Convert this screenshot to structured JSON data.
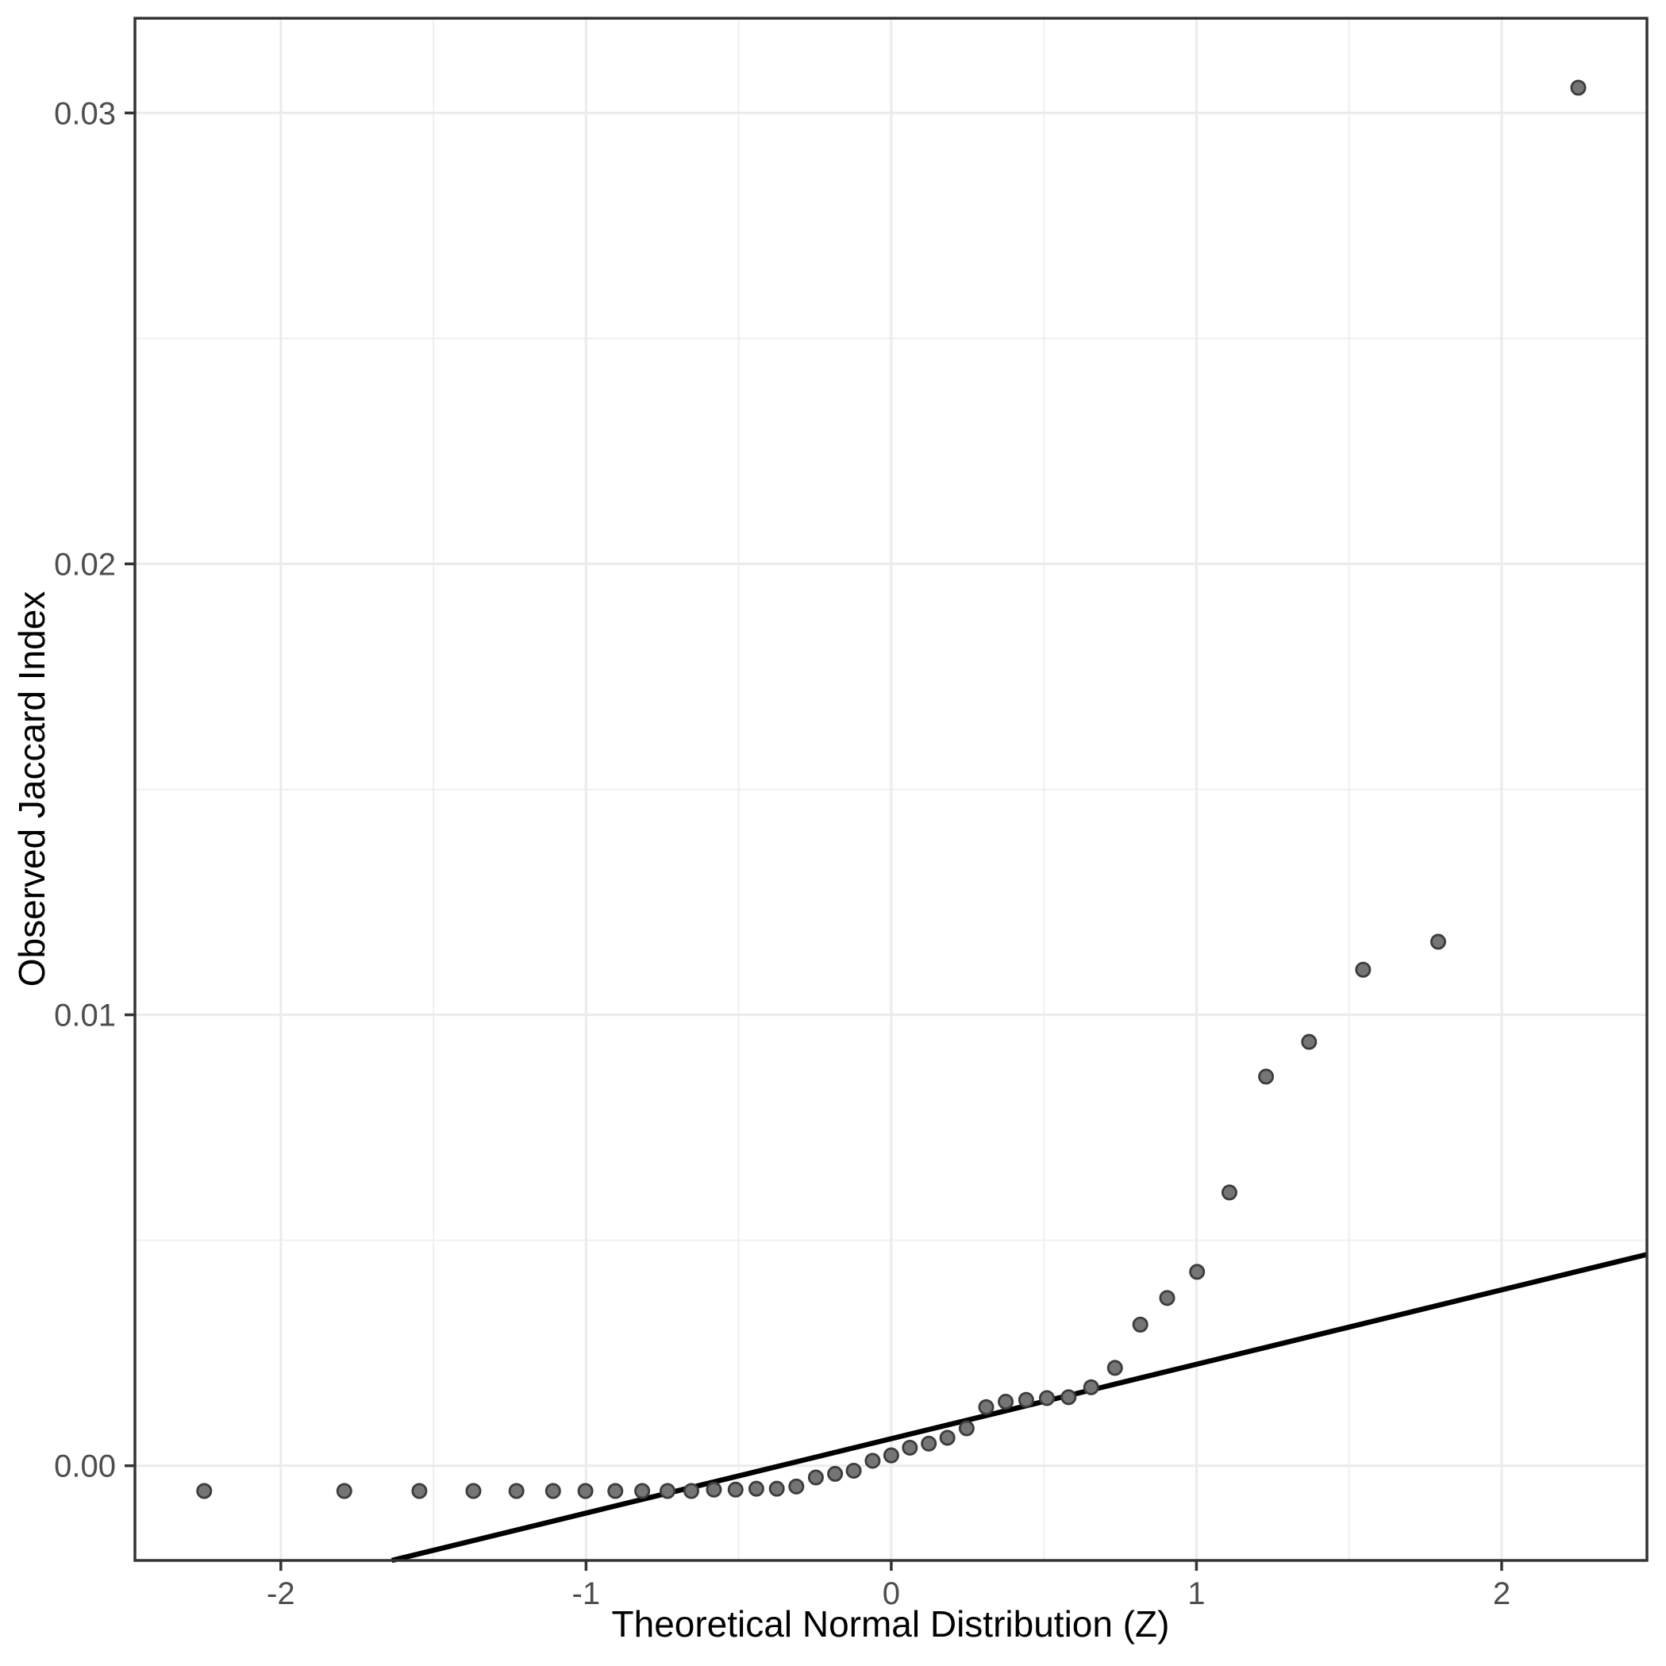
{
  "chart_data": {
    "type": "scatter",
    "title": "",
    "xlabel": "Theoretical Normal Distribution (Z)",
    "ylabel": "Observed Jaccard Index",
    "x_domain": [
      -2.478,
      2.476
    ],
    "y_domain": [
      -0.0021,
      0.0321
    ],
    "x_major_ticks": [
      {
        "value": -2,
        "label": "-2"
      },
      {
        "value": -1,
        "label": "-1"
      },
      {
        "value": 0,
        "label": "0"
      },
      {
        "value": 1,
        "label": "1"
      },
      {
        "value": 2,
        "label": "2"
      }
    ],
    "x_minor_ticks": [
      -1.5,
      -0.5,
      0.5,
      1.5
    ],
    "y_major_ticks": [
      {
        "value": 0.0,
        "label": "0.00"
      },
      {
        "value": 0.01,
        "label": "0.01"
      },
      {
        "value": 0.02,
        "label": "0.02"
      },
      {
        "value": 0.03,
        "label": "0.03"
      }
    ],
    "y_minor_ticks": [
      0.005,
      0.015,
      0.025
    ],
    "grid": true,
    "legend": "none",
    "series": [
      {
        "name": "qq-points",
        "points": [
          [
            -2.251,
            -0.00056
          ],
          [
            -1.792,
            -0.00056
          ],
          [
            -1.546,
            -0.00056
          ],
          [
            -1.369,
            -0.00056
          ],
          [
            -1.228,
            -0.00056
          ],
          [
            -1.108,
            -0.00056
          ],
          [
            -1.002,
            -0.00056
          ],
          [
            -0.904,
            -0.00056
          ],
          [
            -0.816,
            -0.00056
          ],
          [
            -0.733,
            -0.00056
          ],
          [
            -0.655,
            -0.00056
          ],
          [
            -0.581,
            -0.00053
          ],
          [
            -0.51,
            -0.00053
          ],
          [
            -0.442,
            -0.00051
          ],
          [
            -0.375,
            -0.00051
          ],
          [
            -0.311,
            -0.00046
          ],
          [
            -0.247,
            -0.00026
          ],
          [
            -0.184,
            -0.00018
          ],
          [
            -0.123,
            -0.00011
          ],
          [
            -0.061,
            0.00011
          ],
          [
            0.0,
            0.00023
          ],
          [
            0.061,
            0.0004
          ],
          [
            0.123,
            0.00049
          ],
          [
            0.184,
            0.00062
          ],
          [
            0.247,
            0.00083
          ],
          [
            0.311,
            0.0013
          ],
          [
            0.375,
            0.00142
          ],
          [
            0.442,
            0.00146
          ],
          [
            0.51,
            0.0015
          ],
          [
            0.581,
            0.00152
          ],
          [
            0.655,
            0.00174
          ],
          [
            0.733,
            0.00217
          ],
          [
            0.816,
            0.00313
          ],
          [
            0.904,
            0.00372
          ],
          [
            1.002,
            0.0043
          ],
          [
            1.108,
            0.00606
          ],
          [
            1.228,
            0.00863
          ],
          [
            1.369,
            0.0094
          ],
          [
            1.546,
            0.011
          ],
          [
            1.792,
            0.01162
          ],
          [
            2.251,
            0.03056
          ]
        ]
      }
    ],
    "ref_line": {
      "intercept": 0.0006,
      "slope": 0.00165
    },
    "style": {
      "point_fill": "#757575",
      "point_stroke": "#3c3c3c",
      "ref_line_color": "#000000",
      "panel_border_color": "#333333",
      "grid_major_color": "#ebebeb",
      "grid_minor_color": "#f0f0f0",
      "tick_color": "#333333",
      "tick_label_color": "#4d4d4d",
      "background": "#ffffff"
    }
  }
}
